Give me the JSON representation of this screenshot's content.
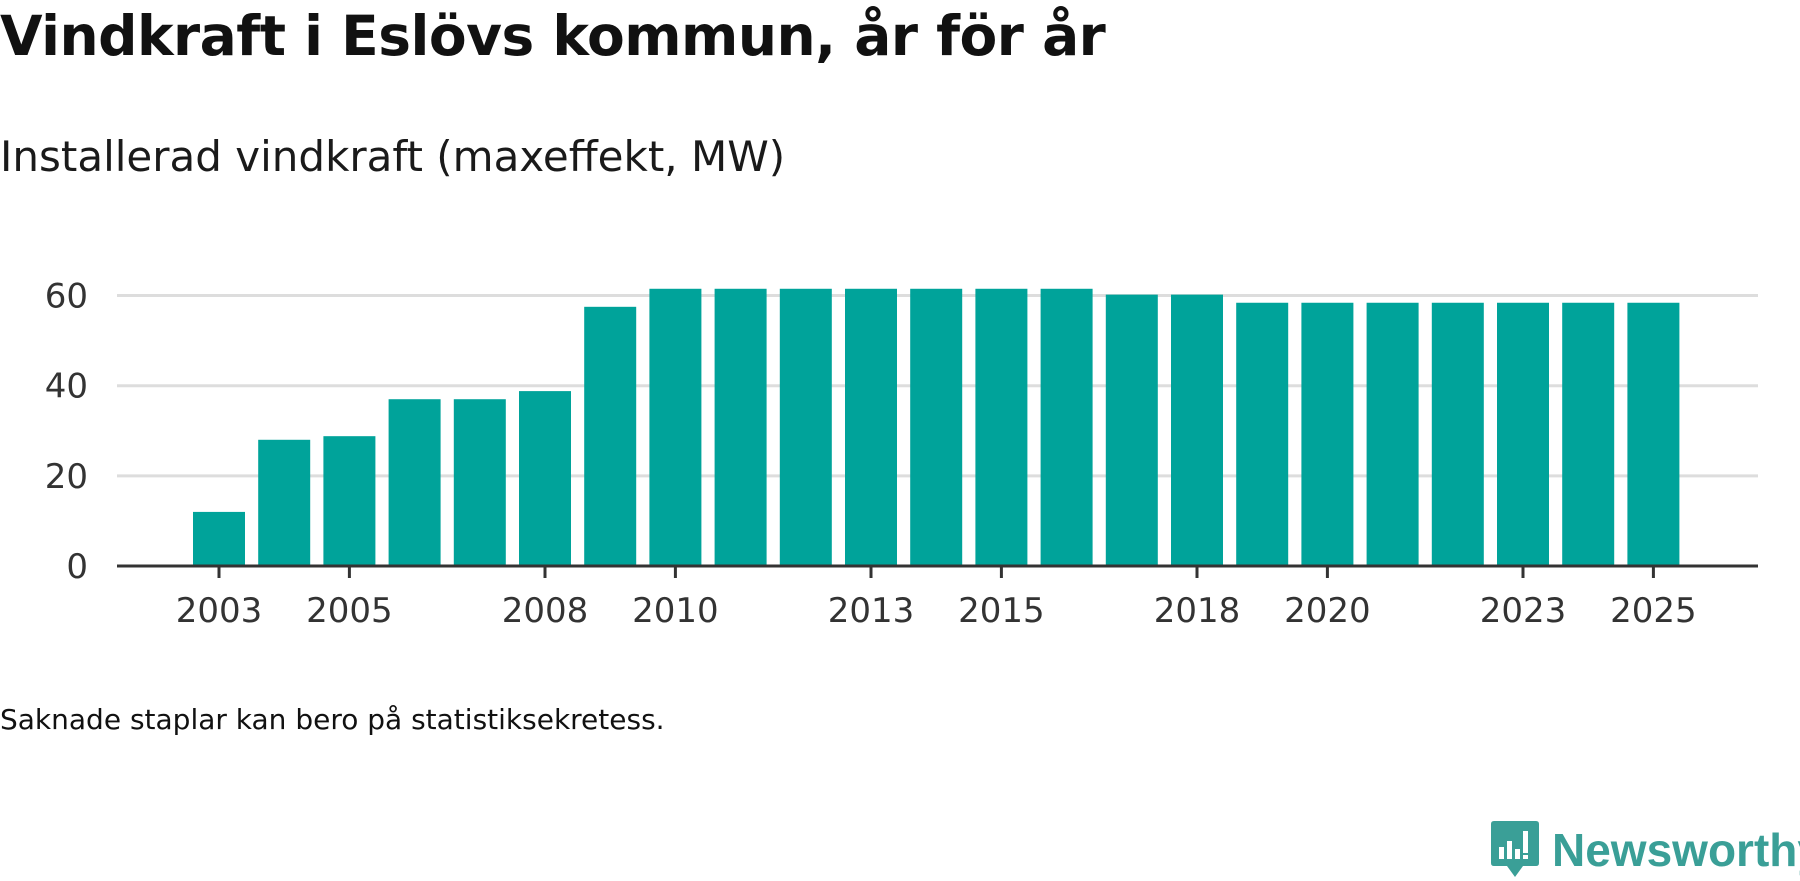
{
  "title": "Vindkraft i Eslövs kommun, år för år",
  "subtitle": "Installerad vindkraft (maxeffekt, MW)",
  "footnote": "Saknade staplar kan bero på statistiksekretess.",
  "brand": {
    "name": "Newsworthy",
    "icon": "newsworthy-logo-icon"
  },
  "colors": {
    "bar": "#00a39a",
    "grid": "#dddddd",
    "axis": "#333333",
    "brand": "#3a9f97"
  },
  "chart_data": {
    "type": "bar",
    "title": "Vindkraft i Eslövs kommun, år för år",
    "subtitle": "Installerad vindkraft (maxeffekt, MW)",
    "xlabel": "",
    "ylabel": "",
    "categories": [
      "2003",
      "2004",
      "2005",
      "2006",
      "2007",
      "2008",
      "2009",
      "2010",
      "2011",
      "2012",
      "2013",
      "2014",
      "2015",
      "2016",
      "2017",
      "2018",
      "2019",
      "2020",
      "2021",
      "2022",
      "2023",
      "2024",
      "2025"
    ],
    "values": [
      12,
      28,
      28.8,
      37,
      37,
      38.8,
      57.5,
      61.5,
      61.5,
      61.5,
      61.5,
      61.5,
      61.5,
      61.5,
      60.2,
      60.2,
      58.4,
      58.4,
      58.4,
      58.4,
      58.4,
      58.4,
      58.4
    ],
    "x_tick_labels": [
      "2003",
      "2005",
      "2008",
      "2010",
      "2013",
      "2015",
      "2018",
      "2020",
      "2023",
      "2025"
    ],
    "y_ticks": [
      0,
      20,
      40,
      60
    ],
    "ylim": [
      0,
      65
    ],
    "grid": true
  }
}
